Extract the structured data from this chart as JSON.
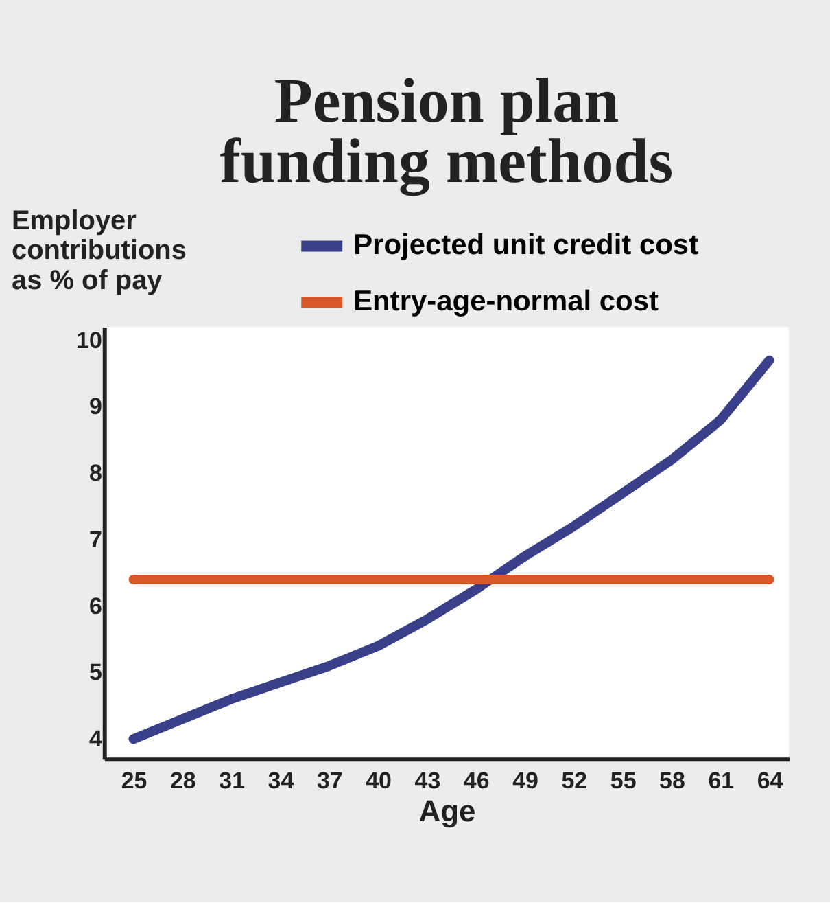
{
  "chart_data": {
    "type": "line",
    "title": "Pension plan funding methods",
    "ylabel": "Employer contributions as % of pay",
    "xlabel": "Age",
    "xlim": [
      23.2,
      65.2
    ],
    "xticks": [
      25,
      28,
      31,
      34,
      37,
      40,
      43,
      46,
      49,
      52,
      55,
      58,
      61,
      64
    ],
    "ylim": [
      3.7,
      10.2
    ],
    "yticks": [
      4,
      5,
      6,
      7,
      8,
      9,
      10
    ],
    "grid": false,
    "legend": "top",
    "marker": "none",
    "line_style": "solid",
    "series": [
      {
        "name": "Projected unit credit cost",
        "color": "#3a3f8a",
        "x": [
          25,
          28,
          31,
          34,
          37,
          40,
          43,
          46,
          49,
          52,
          55,
          58,
          61,
          64
        ],
        "values": [
          4.0,
          4.3,
          4.6,
          4.85,
          5.1,
          5.4,
          5.8,
          6.25,
          6.75,
          7.2,
          7.7,
          8.2,
          8.8,
          9.7
        ]
      },
      {
        "name": "Entry-age-normal cost",
        "color": "#d9582a",
        "x": [
          25,
          64
        ],
        "values": [
          6.4,
          6.4
        ]
      }
    ]
  }
}
